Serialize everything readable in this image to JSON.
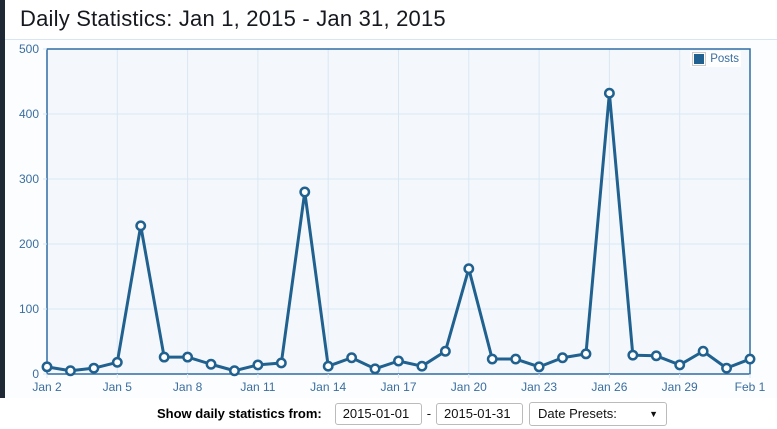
{
  "header": {
    "title": "Daily Statistics: Jan 1, 2015 - Jan 31, 2015"
  },
  "legend": {
    "posts_label": "Posts"
  },
  "chart_data": {
    "type": "line",
    "title": "Daily Statistics: Jan 1, 2015 - Jan 31, 2015",
    "categories": [
      "Jan 2",
      "Jan 3",
      "Jan 4",
      "Jan 5",
      "Jan 6",
      "Jan 7",
      "Jan 8",
      "Jan 9",
      "Jan 10",
      "Jan 11",
      "Jan 12",
      "Jan 13",
      "Jan 14",
      "Jan 15",
      "Jan 16",
      "Jan 17",
      "Jan 18",
      "Jan 19",
      "Jan 20",
      "Jan 21",
      "Jan 22",
      "Jan 23",
      "Jan 24",
      "Jan 25",
      "Jan 26",
      "Jan 27",
      "Jan 28",
      "Jan 29",
      "Jan 30",
      "Jan 31",
      "Feb 1"
    ],
    "series": [
      {
        "name": "Posts",
        "color": "#20618f",
        "values": [
          11,
          5,
          9,
          18,
          228,
          26,
          26,
          15,
          5,
          14,
          17,
          280,
          12,
          25,
          8,
          20,
          12,
          35,
          162,
          23,
          23,
          11,
          25,
          31,
          432,
          29,
          28,
          14,
          35,
          9,
          23
        ]
      }
    ],
    "xlabel": "",
    "ylabel": "",
    "ylim": [
      0,
      500
    ],
    "yticks": [
      0,
      100,
      200,
      300,
      400,
      500
    ],
    "x_tick_labels": [
      "Jan 2",
      "Jan 5",
      "Jan 8",
      "Jan 11",
      "Jan 14",
      "Jan 17",
      "Jan 20",
      "Jan 23",
      "Jan 26",
      "Jan 29",
      "Feb 1"
    ],
    "x_tick_interval": 3,
    "grid": true,
    "legend_position": "top-right",
    "colors": {
      "plot_background": "#f4f8fc",
      "outer_background": "#fbfdfe",
      "plot_border": "#2e6da4",
      "gridline": "#d9e7f4",
      "tick_label": "#3b6e9f",
      "point_fill": "#ffffff"
    }
  },
  "controls": {
    "label": "Show daily statistics from:",
    "from_value": "2015-01-01",
    "separator": "-",
    "to_value": "2015-01-31",
    "presets_label": "Date Presets:"
  }
}
